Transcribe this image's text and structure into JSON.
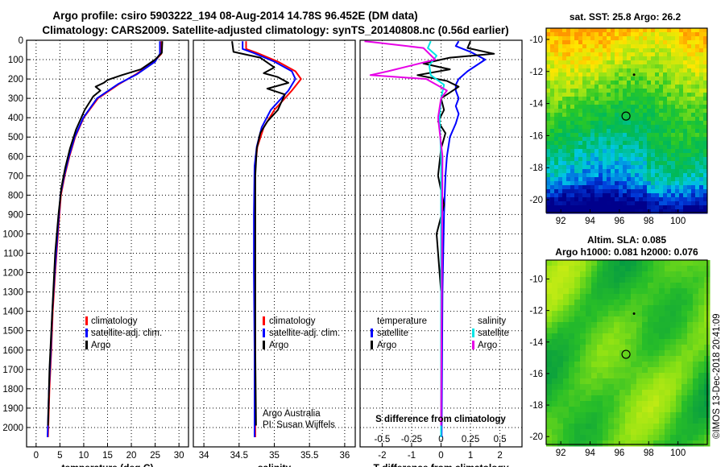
{
  "header": {
    "title_line1": "Argo profile: csiro 5903222_194 08-Aug-2014 14.78S 96.452E (DM data)",
    "title_line2": "Climatology: CARS2009. Satellite-adjusted climatology: synTS_20140808.nc (0.56d earlier)"
  },
  "colors": {
    "climatology": "#ff0000",
    "satellite": "#0000ff",
    "argo": "#000000",
    "sat_salinity": "#00e5e5",
    "argo_salinity": "#e600e6"
  },
  "footer_credit": "©IMOS 13-Dec-2018 20:41:09",
  "chart_data": [
    {
      "type": "line",
      "id": "temperature",
      "xlabel": "temperature (deg C)",
      "ylabel": "",
      "xlim": [
        -2,
        32
      ],
      "ylim": [
        2100,
        0
      ],
      "xticks": [
        0,
        5,
        10,
        15,
        20,
        25,
        30
      ],
      "xtick_labels": [
        "0",
        "5",
        "10",
        "15",
        "20",
        "25",
        "30"
      ],
      "yticks": [
        0,
        100,
        200,
        300,
        400,
        500,
        600,
        700,
        800,
        900,
        1000,
        1100,
        1200,
        1300,
        1400,
        1500,
        1600,
        1700,
        1800,
        1900,
        2000
      ],
      "ytick_labels": [
        "0",
        "100",
        "200",
        "300",
        "400",
        "500",
        "600",
        "700",
        "800",
        "900",
        "1000",
        "1100",
        "1200",
        "1300",
        "1400",
        "1500",
        "1600",
        "1700",
        "1800",
        "1900",
        "2000"
      ],
      "legend": [
        "climatology",
        "satellite-adj. clim.",
        "Argo"
      ],
      "series": [
        {
          "name": "climatology",
          "color": "#ff0000",
          "x": [
            26.3,
            26.3,
            24.8,
            21.0,
            17.5,
            13.0,
            10.0,
            8.2,
            7.0,
            6.0,
            5.2,
            4.6,
            4.0,
            3.5,
            3.2,
            2.8,
            2.5
          ],
          "y": [
            5,
            70,
            110,
            175,
            225,
            300,
            400,
            500,
            600,
            700,
            800,
            1000,
            1200,
            1400,
            1600,
            1800,
            2050
          ]
        },
        {
          "name": "satellite-adj. clim.",
          "color": "#0000ff",
          "x": [
            26.0,
            26.0,
            25.0,
            21.2,
            17.3,
            12.8,
            9.9,
            8.1,
            6.9,
            5.9,
            5.1,
            4.5,
            3.9,
            3.4,
            3.1,
            2.7,
            2.4
          ],
          "y": [
            5,
            70,
            110,
            175,
            225,
            300,
            400,
            500,
            600,
            700,
            800,
            1000,
            1200,
            1400,
            1600,
            1800,
            2050
          ]
        },
        {
          "name": "Argo",
          "color": "#000000",
          "x": [
            26.5,
            26.4,
            25.0,
            22.0,
            18.0,
            15.0,
            14.2,
            12.5,
            13.5,
            12.0,
            10.2,
            8.4,
            7.1,
            6.1,
            5.3,
            4.7,
            4.0,
            3.6,
            3.2,
            2.8,
            2.5
          ],
          "y": [
            5,
            65,
            100,
            150,
            180,
            205,
            220,
            240,
            260,
            290,
            360,
            460,
            560,
            660,
            760,
            900,
            1100,
            1300,
            1500,
            1700,
            1990
          ]
        }
      ]
    },
    {
      "type": "line",
      "id": "salinity",
      "xlabel": "salinity",
      "xlim": [
        33.85,
        36.15
      ],
      "ylim": [
        2100,
        0
      ],
      "xticks": [
        34,
        34.5,
        35,
        35.5,
        36
      ],
      "xtick_labels": [
        "34",
        "34.5",
        "35",
        "35.5",
        "36"
      ],
      "legend": [
        "climatology",
        "satellite-adj. clim.",
        "Argo"
      ],
      "note_line1": "Argo Australia",
      "note_line2": "PI: Susan Wijffels",
      "series": [
        {
          "name": "climatology",
          "color": "#ff0000",
          "x": [
            34.6,
            34.6,
            34.75,
            35.05,
            35.3,
            35.38,
            35.25,
            35.0,
            34.85,
            34.76,
            34.73,
            34.72,
            34.72,
            34.73,
            34.73
          ],
          "y": [
            5,
            45,
            65,
            110,
            160,
            200,
            260,
            360,
            450,
            550,
            650,
            900,
            1200,
            1600,
            2050
          ]
        },
        {
          "name": "satellite-adj. clim.",
          "color": "#0000ff",
          "x": [
            34.55,
            34.55,
            34.7,
            35.0,
            35.25,
            35.3,
            35.2,
            34.95,
            34.82,
            34.75,
            34.72,
            34.71,
            34.71,
            34.72,
            34.72
          ],
          "y": [
            5,
            45,
            65,
            110,
            160,
            200,
            260,
            360,
            450,
            550,
            650,
            900,
            1200,
            1600,
            2050
          ]
        },
        {
          "name": "Argo",
          "color": "#000000",
          "x": [
            34.4,
            34.42,
            34.8,
            35.0,
            34.85,
            35.05,
            35.2,
            34.9,
            35.15,
            35.1,
            35.05,
            34.9,
            34.8,
            34.75,
            34.73,
            34.73,
            34.73,
            34.74
          ],
          "y": [
            5,
            60,
            90,
            140,
            170,
            190,
            220,
            250,
            280,
            320,
            360,
            420,
            480,
            560,
            700,
            1100,
            1600,
            1990
          ]
        }
      ]
    },
    {
      "type": "line",
      "id": "difference",
      "xlabel": "T difference from climatology",
      "x2label": "S difference from climatology",
      "xlim": [
        -2.75,
        2.75
      ],
      "ylim": [
        2100,
        0
      ],
      "xticks": [
        -2,
        -1,
        0,
        1,
        2
      ],
      "xtick_labels": [
        "-2",
        "-1",
        "0",
        "1",
        "2"
      ],
      "x2tick_labels": [
        "-0.5",
        "-0.25",
        "0",
        "0.25",
        "0.5"
      ],
      "legend_left_title": "temperature",
      "legend_right_title": "salinity",
      "legend_left": [
        "satellite",
        "Argo"
      ],
      "legend_right": [
        "satellite",
        "Argo"
      ],
      "series": [
        {
          "name": "T satellite",
          "color": "#0000ff",
          "x": [
            0.6,
            0.5,
            1.0,
            1.5,
            0.9,
            0.6,
            0.5,
            0.5,
            0.6,
            0.5,
            0.6,
            0.5,
            0.3,
            0.2,
            0.15,
            0.1,
            0.05,
            0.02
          ],
          "y": [
            5,
            30,
            60,
            100,
            160,
            200,
            230,
            260,
            300,
            340,
            380,
            430,
            500,
            600,
            700,
            900,
            1300,
            2050
          ]
        },
        {
          "name": "T Argo",
          "color": "#000000",
          "x": [
            1.0,
            0.9,
            1.8,
            0.3,
            -0.6,
            0.3,
            -0.8,
            0.2,
            0.6,
            0.3,
            0.0,
            0.1,
            -0.1,
            0.15,
            0.0,
            -0.1,
            0.1,
            -0.15,
            0.0,
            0.0
          ],
          "y": [
            5,
            40,
            70,
            90,
            120,
            150,
            180,
            210,
            240,
            270,
            300,
            360,
            420,
            480,
            560,
            700,
            850,
            1000,
            1300,
            1990
          ]
        },
        {
          "name": "S satellite",
          "color": "#00e5e5",
          "x": [
            -0.35,
            -0.45,
            -0.15,
            -0.4,
            -0.35,
            0.1,
            0.0,
            -0.05,
            0.0,
            0.0,
            0.0
          ],
          "y": [
            5,
            40,
            80,
            130,
            180,
            230,
            300,
            400,
            600,
            1200,
            2050
          ]
        },
        {
          "name": "S Argo",
          "color": "#e600e6",
          "x": [
            -2.6,
            -2.3,
            -0.6,
            -0.2,
            -1.8,
            -2.4,
            -0.5,
            0.2,
            0.0,
            -0.1,
            0.05,
            0.0
          ],
          "y": [
            5,
            10,
            40,
            100,
            160,
            180,
            200,
            260,
            300,
            400,
            600,
            1990
          ]
        }
      ]
    },
    {
      "type": "heatmap",
      "id": "sst-map",
      "title": "sat. SST: 25.8 Argo: 26.2",
      "xlim": [
        91,
        102
      ],
      "ylim": [
        -20.8,
        -9.3
      ],
      "xticks": [
        92,
        94,
        96,
        98,
        100
      ],
      "xtick_labels": [
        "92",
        "94",
        "96",
        "98",
        "100"
      ],
      "yticks": [
        -20,
        -18,
        -16,
        -14,
        -12,
        -10
      ],
      "ytick_labels": [
        "-20",
        "-18",
        "-16",
        "-14",
        "-12",
        "-10"
      ],
      "marker": {
        "lon": 96.45,
        "lat": -14.78
      },
      "dot": {
        "lon": 97.0,
        "lat": -12.2
      }
    },
    {
      "type": "heatmap",
      "id": "sla-map",
      "title_line1": "Altim. SLA: 0.085",
      "title_line2": "Argo h1000: 0.081 h2000: 0.076",
      "xlim": [
        91,
        102
      ],
      "ylim": [
        -20.5,
        -8.8
      ],
      "xticks": [
        92,
        94,
        96,
        98,
        100
      ],
      "xtick_labels": [
        "92",
        "94",
        "96",
        "98",
        "100"
      ],
      "yticks": [
        -20,
        -18,
        -16,
        -14,
        -12,
        -10
      ],
      "ytick_labels": [
        "-20",
        "-18",
        "-16",
        "-14",
        "-12",
        "-10"
      ],
      "marker": {
        "lon": 96.45,
        "lat": -14.78
      },
      "dot": {
        "lon": 97.0,
        "lat": -12.2
      }
    }
  ]
}
